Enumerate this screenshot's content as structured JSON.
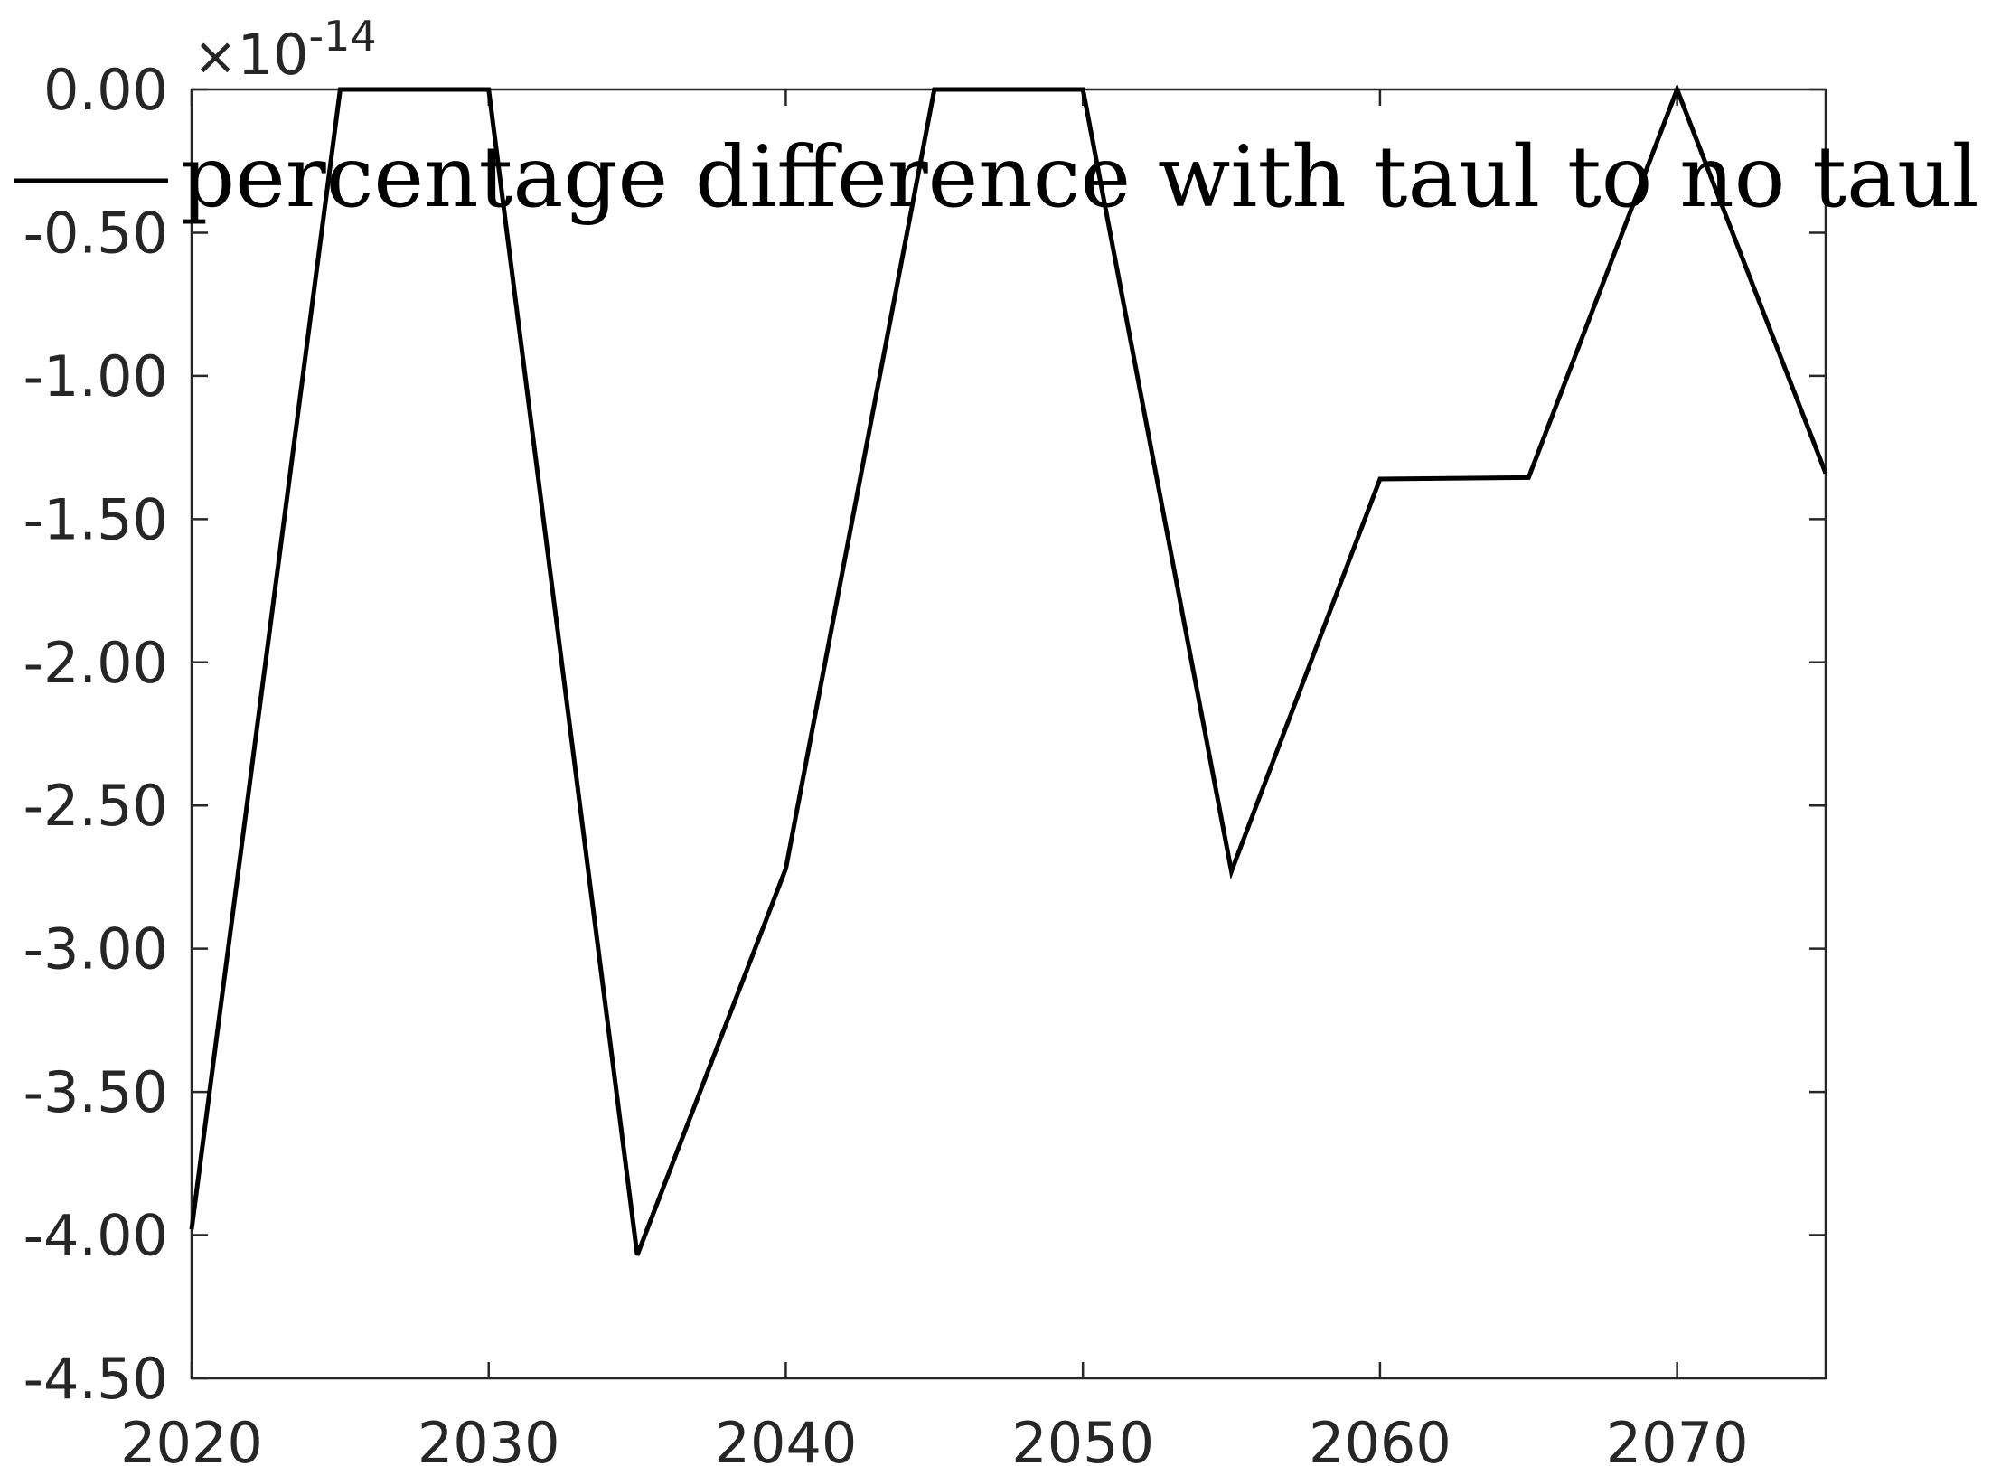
{
  "chart_data": {
    "type": "line",
    "title": "",
    "xlabel": "",
    "ylabel": "",
    "xlim": [
      2020,
      2075
    ],
    "ylim": [
      -4.5,
      0
    ],
    "y_exponent": {
      "times": "×",
      "base": "10",
      "power": "-14"
    },
    "xticks": [
      2020,
      2030,
      2040,
      2050,
      2060,
      2070
    ],
    "xtick_labels": [
      "2020",
      "2030",
      "2040",
      "2050",
      "2060",
      "2070"
    ],
    "yticks": [
      0,
      -0.5,
      -1,
      -1.5,
      -2,
      -2.5,
      -3,
      -3.5,
      -4,
      -4.5
    ],
    "ytick_labels": [
      "0.00",
      "-0.50",
      "-1.00",
      "-1.50",
      "-2.00",
      "-2.50",
      "-3.00",
      "-3.50",
      "-4.00",
      "-4.50"
    ],
    "grid": false,
    "legend_position": "top",
    "series": [
      {
        "name": "percentage difference with taul to no taul",
        "color": "#000000",
        "x": [
          2020,
          2025,
          2030,
          2035,
          2040,
          2045,
          2050,
          2055,
          2060,
          2065,
          2070,
          2075
        ],
        "y": [
          -3.98,
          0,
          0,
          -4.07,
          -2.72,
          0,
          0,
          -2.73,
          -1.36,
          -1.355,
          0,
          -1.34
        ]
      }
    ]
  }
}
